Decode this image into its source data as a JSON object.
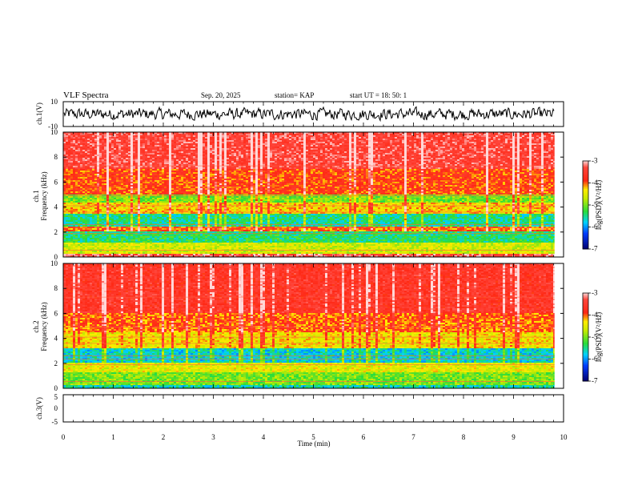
{
  "header": {
    "title": "VLF Spectra",
    "date": "Sep. 20, 2025",
    "station": "station= KAP",
    "start": "start  UT  =   18: 50: 1"
  },
  "colors": {
    "low": "#00007f",
    "mid_low": "#00c8ff",
    "mid": "#22dd22",
    "mid_high": "#f0f000",
    "high": "#ff2a1a",
    "max": "#ffd0d0",
    "line": "#000000"
  },
  "chart_data": [
    {
      "id": "ch1-waveform",
      "type": "line",
      "ylabel": "ch.1(V)",
      "ylim": [
        -10,
        10
      ],
      "yticks": [
        "10",
        "-10"
      ],
      "xlim": [
        0,
        10
      ],
      "description_values": "noise waveform, amplitude approximately ±6 V around 0, trace ends at ~9.82 min"
    },
    {
      "id": "ch1-spectrogram",
      "type": "heatmap",
      "ylabel_channel": "ch.1",
      "ylabel": "Frequency  (kHz)",
      "ylim": [
        0,
        10
      ],
      "yticks": [
        "0",
        "2",
        "4",
        "6",
        "8",
        "10"
      ],
      "xlim": [
        0,
        10
      ],
      "data_end_min": 9.82,
      "colorbar": {
        "range": [
          -7,
          -3
        ],
        "ticks": [
          "-3",
          "-4",
          "-5",
          "-6",
          "-7"
        ],
        "label": "log(PSD)(V²/Hz)"
      },
      "bands_khz": [
        {
          "from": 0,
          "to": 0.3,
          "level": -3.3
        },
        {
          "from": 0.3,
          "to": 1.2,
          "level": -4.6
        },
        {
          "from": 1.2,
          "to": 2.1,
          "level": -5.4
        },
        {
          "from": 2.1,
          "to": 2.5,
          "level": -4.0
        },
        {
          "from": 2.5,
          "to": 3.4,
          "level": -5.5
        },
        {
          "from": 3.4,
          "to": 4.3,
          "level": -4.3
        },
        {
          "from": 4.3,
          "to": 5.0,
          "level": -5.0
        },
        {
          "from": 5.0,
          "to": 7.0,
          "level": -3.9
        },
        {
          "from": 7.0,
          "to": 10.0,
          "level": -3.4
        }
      ]
    },
    {
      "id": "ch2-spectrogram",
      "type": "heatmap",
      "ylabel_channel": "ch.2",
      "ylabel": "Frequency  (kHz)",
      "ylim": [
        0,
        10
      ],
      "yticks": [
        "0",
        "2",
        "4",
        "6",
        "8",
        "10"
      ],
      "xlim": [
        0,
        10
      ],
      "data_end_min": 9.82,
      "colorbar": {
        "range": [
          -7,
          -3
        ],
        "ticks": [
          "-3",
          "-4",
          "-5",
          "-6",
          "-7"
        ],
        "label": "log(PSD)(V²/Hz)"
      },
      "bands_khz": [
        {
          "from": 0,
          "to": 0.3,
          "level": -5.6
        },
        {
          "from": 0.3,
          "to": 1.3,
          "level": -5.0
        },
        {
          "from": 1.3,
          "to": 2.0,
          "level": -4.5
        },
        {
          "from": 2.0,
          "to": 3.2,
          "level": -5.7
        },
        {
          "from": 3.2,
          "to": 4.5,
          "level": -4.4
        },
        {
          "from": 4.5,
          "to": 6.0,
          "level": -4.0
        },
        {
          "from": 6.0,
          "to": 10.0,
          "level": -3.6
        }
      ]
    },
    {
      "id": "ch3-waveform",
      "type": "line",
      "ylabel": "ch.3(V)",
      "ylim": [
        -5,
        5
      ],
      "yticks": [
        "5",
        "0",
        "-5"
      ],
      "xlim": [
        0,
        10
      ],
      "level_v": -0.5,
      "band_halfwidth_v": 0.5,
      "description_values": "nearly constant signal around -0.5 V, trace ends at ~9.82 min"
    }
  ],
  "xaxis": {
    "label": "Time  (min)",
    "ticks": [
      "0",
      "1",
      "2",
      "3",
      "4",
      "5",
      "6",
      "7",
      "8",
      "9",
      "10"
    ]
  }
}
